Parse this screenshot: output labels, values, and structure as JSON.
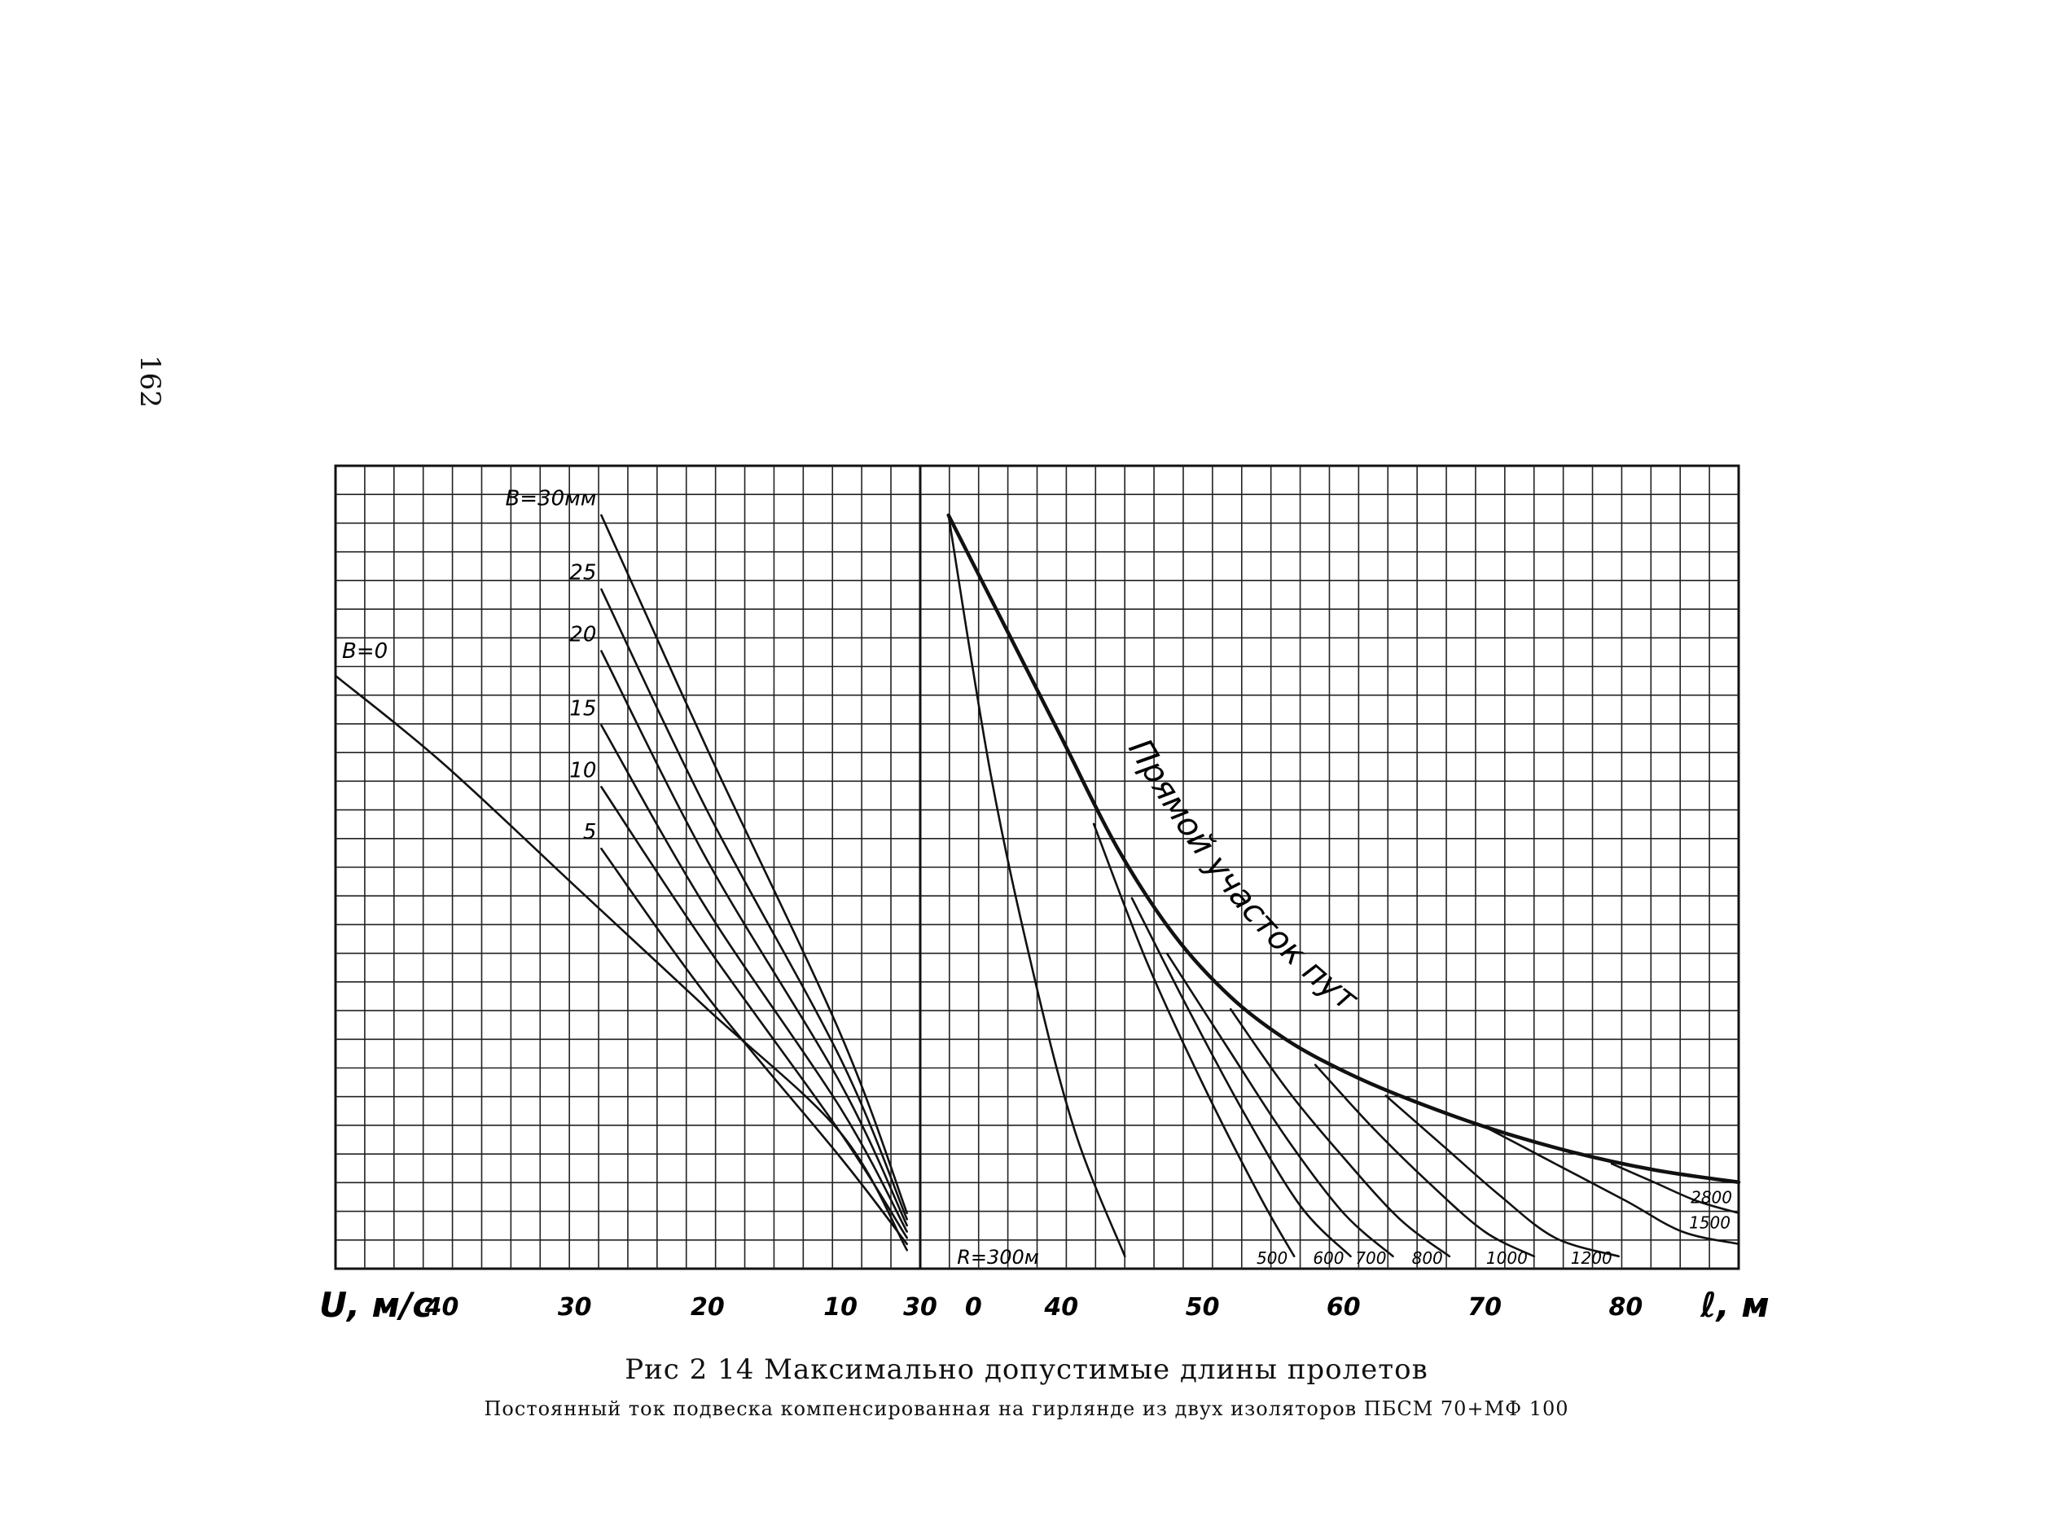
{
  "page_number": "162",
  "caption": {
    "title": "Рис 2 14 Максимально допустимые длины пролетов",
    "subtitle": "Постоянный ток подвеска компенсированная на гирлянде из двух изоляторов ПБСМ 70+МФ 100"
  },
  "chart_data": [
    {
      "type": "line",
      "xlabel": "U, м/с",
      "ylabel": "",
      "xlim": [
        48,
        4
      ],
      "x_ticks": [
        {
          "value": 40,
          "label": "40"
        },
        {
          "value": 30,
          "label": "30"
        },
        {
          "value": 20,
          "label": "20"
        },
        {
          "value": 10,
          "label": "10"
        },
        {
          "value": 0,
          "label": "0"
        }
      ],
      "grid": true,
      "series": [
        {
          "name": "В=0",
          "x": [
            48,
            40,
            30,
            20,
            10,
            5
          ],
          "y": [
            0.96,
            0.82,
            0.62,
            0.42,
            0.22,
            0.03
          ]
        },
        {
          "name": "5",
          "x": [
            28,
            20,
            10,
            5
          ],
          "y": [
            0.68,
            0.44,
            0.18,
            0.04
          ]
        },
        {
          "name": "10",
          "x": [
            28,
            20,
            10,
            5
          ],
          "y": [
            0.78,
            0.52,
            0.22,
            0.05
          ]
        },
        {
          "name": "15",
          "x": [
            28,
            20,
            10,
            5
          ],
          "y": [
            0.88,
            0.58,
            0.26,
            0.06
          ]
        },
        {
          "name": "20",
          "x": [
            28,
            20,
            10,
            5
          ],
          "y": [
            1.0,
            0.66,
            0.3,
            0.07
          ]
        },
        {
          "name": "25",
          "x": [
            28,
            20,
            10,
            5
          ],
          "y": [
            1.1,
            0.74,
            0.34,
            0.08
          ]
        },
        {
          "name": "В=30мм",
          "x": [
            28,
            20,
            10,
            5
          ],
          "y": [
            1.22,
            0.84,
            0.38,
            0.09
          ]
        }
      ]
    },
    {
      "type": "line",
      "xlabel": "ℓ, м",
      "ylabel": "",
      "xlim": [
        30,
        88
      ],
      "x_ticks": [
        {
          "value": 30,
          "label": "30"
        },
        {
          "value": 40,
          "label": "40"
        },
        {
          "value": 50,
          "label": "50"
        },
        {
          "value": 60,
          "label": "60"
        },
        {
          "value": 70,
          "label": "70"
        },
        {
          "value": 80,
          "label": "80"
        }
      ],
      "grid": true,
      "annotation": "Прямой участок пути",
      "series": [
        {
          "name": "Прямой участок пути",
          "x": [
            32,
            36,
            40,
            44,
            48,
            52,
            56,
            60,
            64,
            70,
            76,
            82,
            88
          ],
          "y": [
            1.22,
            1.04,
            0.86,
            0.68,
            0.54,
            0.44,
            0.37,
            0.32,
            0.28,
            0.23,
            0.19,
            0.16,
            0.14
          ]
        },
        {
          "name": "R=300м",
          "x": [
            32,
            35,
            38,
            41,
            44.5
          ],
          "y": [
            1.22,
            0.8,
            0.48,
            0.22,
            0.02
          ]
        },
        {
          "name": "500",
          "x": [
            42.3,
            46,
            50,
            54,
            56.5
          ],
          "y": [
            0.72,
            0.5,
            0.3,
            0.12,
            0.02
          ]
        },
        {
          "name": "600",
          "x": [
            45,
            49,
            53,
            57,
            60.5
          ],
          "y": [
            0.6,
            0.42,
            0.25,
            0.1,
            0.02
          ]
        },
        {
          "name": "700",
          "x": [
            47.5,
            52,
            56,
            60,
            63.5
          ],
          "y": [
            0.51,
            0.35,
            0.21,
            0.09,
            0.02
          ]
        },
        {
          "name": "800",
          "x": [
            52,
            56,
            60,
            64,
            67.5
          ],
          "y": [
            0.42,
            0.29,
            0.18,
            0.08,
            0.02
          ]
        },
        {
          "name": "1000",
          "x": [
            58,
            62,
            66,
            70,
            73.5
          ],
          "y": [
            0.33,
            0.23,
            0.14,
            0.06,
            0.02
          ]
        },
        {
          "name": "1200",
          "x": [
            63,
            67,
            71,
            75,
            79.5
          ],
          "y": [
            0.28,
            0.2,
            0.12,
            0.05,
            0.02
          ]
        },
        {
          "name": "1500",
          "x": [
            70,
            75,
            80,
            84,
            88
          ],
          "y": [
            0.23,
            0.17,
            0.11,
            0.06,
            0.04
          ]
        },
        {
          "name": "2800",
          "x": [
            79,
            82,
            85,
            88
          ],
          "y": [
            0.17,
            0.14,
            0.11,
            0.09
          ]
        }
      ]
    }
  ]
}
